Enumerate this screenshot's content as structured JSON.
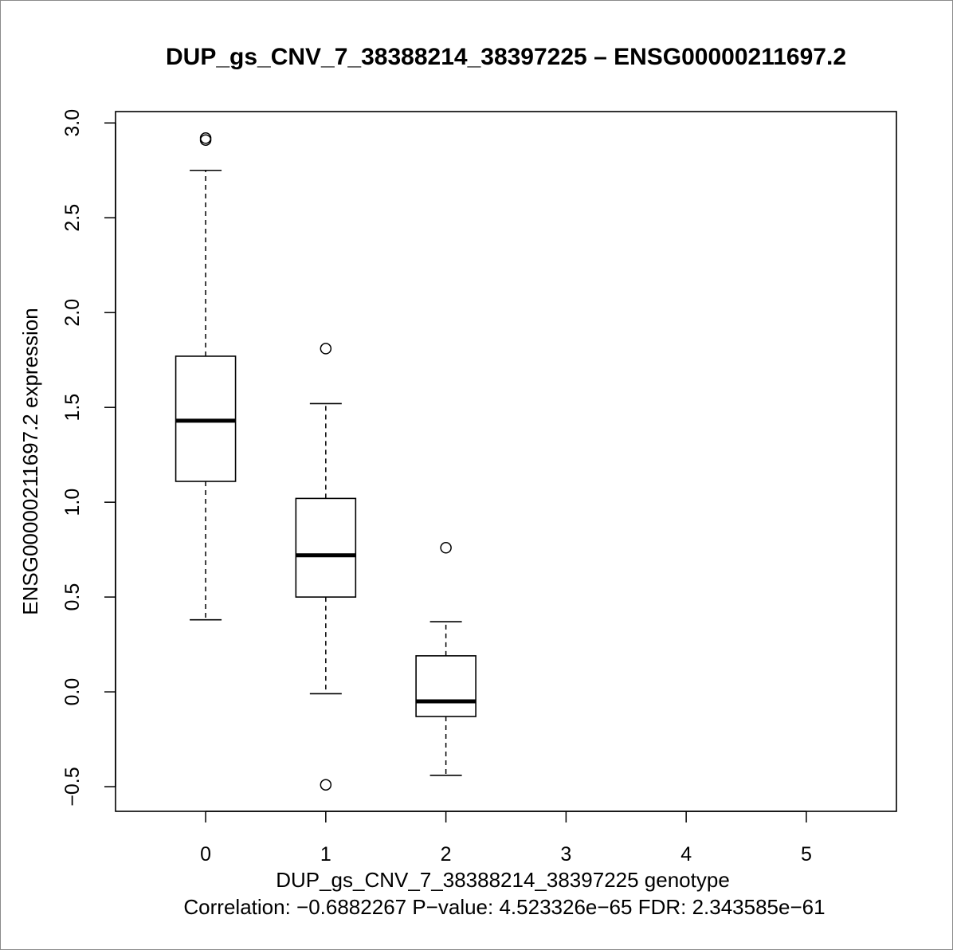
{
  "chart_data": {
    "type": "box",
    "title": "DUP_gs_CNV_7_38388214_38397225  –  ENSG00000211697.2",
    "xlabel": "DUP_gs_CNV_7_38388214_38397225  genotype",
    "ylabel": "ENSG00000211697.2  expression",
    "subtitle": "Correlation:  −0.6882267 P−value:  4.523326e−65  FDR:  2.343585e−61",
    "xlim": [
      -0.75,
      5.75
    ],
    "ylim": [
      -0.63,
      3.06
    ],
    "x_ticks": [
      0,
      1,
      2,
      3,
      4,
      5
    ],
    "x_tick_labels": [
      "0",
      "1",
      "2",
      "3",
      "4",
      "5"
    ],
    "y_ticks": [
      -0.5,
      0.0,
      0.5,
      1.0,
      1.5,
      2.0,
      2.5,
      3.0
    ],
    "y_tick_labels": [
      "−0.5",
      "0.0",
      "0.5",
      "1.0",
      "1.5",
      "2.0",
      "2.5",
      "3.0"
    ],
    "grid": false,
    "boxes": [
      {
        "x": 0,
        "whisker_low": 0.38,
        "q1": 1.11,
        "median": 1.43,
        "q3": 1.77,
        "whisker_high": 2.75,
        "outliers": [
          2.92,
          2.91
        ]
      },
      {
        "x": 1,
        "whisker_low": -0.01,
        "q1": 0.5,
        "median": 0.72,
        "q3": 1.02,
        "whisker_high": 1.52,
        "outliers": [
          1.81,
          -0.49
        ]
      },
      {
        "x": 2,
        "whisker_low": -0.44,
        "q1": -0.13,
        "median": -0.05,
        "q3": 0.19,
        "whisker_high": 0.37,
        "outliers": [
          0.76
        ]
      }
    ]
  }
}
